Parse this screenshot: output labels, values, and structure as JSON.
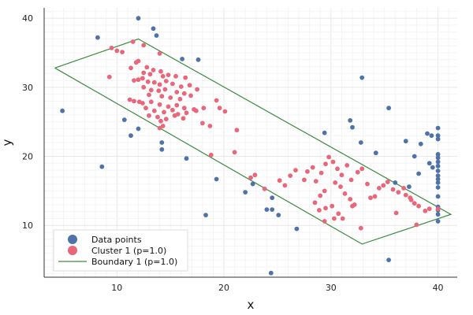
{
  "chart_data": {
    "type": "scatter",
    "title": "",
    "xlabel": "x",
    "ylabel": "y",
    "xlim": [
      3.2,
      41.8
    ],
    "ylim": [
      2.5,
      41.5
    ],
    "xticks": [
      10,
      20,
      30,
      40
    ],
    "yticks": [
      10,
      20,
      30,
      40
    ],
    "grid": true,
    "legend_position": "bottom-left",
    "series": [
      {
        "name": "Data points",
        "kind": "scatter",
        "color": "#4f73a8",
        "points": [
          [
            12.0,
            40.0
          ],
          [
            13.4,
            38.5
          ],
          [
            13.7,
            37.5
          ],
          [
            8.2,
            37.2
          ],
          [
            16.1,
            34.1
          ],
          [
            17.6,
            34.0
          ],
          [
            4.9,
            26.6
          ],
          [
            10.7,
            25.3
          ],
          [
            11.3,
            23.0
          ],
          [
            12.0,
            24.0
          ],
          [
            14.2,
            22.0
          ],
          [
            14.2,
            21.0
          ],
          [
            16.5,
            19.7
          ],
          [
            8.6,
            18.5
          ],
          [
            19.3,
            16.7
          ],
          [
            18.3,
            11.5
          ],
          [
            22.0,
            14.8
          ],
          [
            22.7,
            16.0
          ],
          [
            24.0,
            12.3
          ],
          [
            24.5,
            12.3
          ],
          [
            25.1,
            11.5
          ],
          [
            24.5,
            14.0
          ],
          [
            26.8,
            9.5
          ],
          [
            24.4,
            3.1
          ],
          [
            29.4,
            23.4
          ],
          [
            31.8,
            25.2
          ],
          [
            32.0,
            24.2
          ],
          [
            32.9,
            31.4
          ],
          [
            32.8,
            22.0
          ],
          [
            34.2,
            20.5
          ],
          [
            35.4,
            27.0
          ],
          [
            35.4,
            5.0
          ],
          [
            36.0,
            16.2
          ],
          [
            37.0,
            22.2
          ],
          [
            37.3,
            15.6
          ],
          [
            37.8,
            20.0
          ],
          [
            38.2,
            17.5
          ],
          [
            38.4,
            21.8
          ],
          [
            39.0,
            23.3
          ],
          [
            39.4,
            23.0
          ],
          [
            39.2,
            19.0
          ],
          [
            39.5,
            18.4
          ],
          [
            40.0,
            24.1
          ],
          [
            40.0,
            23.0
          ],
          [
            40.0,
            22.5
          ],
          [
            40.0,
            20.3
          ],
          [
            40.0,
            19.8
          ],
          [
            40.0,
            19.2
          ],
          [
            40.0,
            18.6
          ],
          [
            40.0,
            17.9
          ],
          [
            40.0,
            17.2
          ],
          [
            40.0,
            16.7
          ],
          [
            40.0,
            16.2
          ],
          [
            40.0,
            15.5
          ],
          [
            40.0,
            14.2
          ],
          [
            40.0,
            12.7
          ],
          [
            40.0,
            12.2
          ],
          [
            40.0,
            11.6
          ],
          [
            40.0,
            10.6
          ]
        ]
      },
      {
        "name": "Cluster 1 (p=1.0)",
        "kind": "scatter",
        "color": "#e8677a",
        "points": [
          [
            9.5,
            35.7
          ],
          [
            10.0,
            35.3
          ],
          [
            10.5,
            35.1
          ],
          [
            9.3,
            31.5
          ],
          [
            11.5,
            36.6
          ],
          [
            12.5,
            36.1
          ],
          [
            14.0,
            34.9
          ],
          [
            12.0,
            33.8
          ],
          [
            11.8,
            33.6
          ],
          [
            11.3,
            32.8
          ],
          [
            12.8,
            32.9
          ],
          [
            13.4,
            32.5
          ],
          [
            14.1,
            32.3
          ],
          [
            12.5,
            32.1
          ],
          [
            13.1,
            31.9
          ],
          [
            14.3,
            31.6
          ],
          [
            14.8,
            31.8
          ],
          [
            15.5,
            31.6
          ],
          [
            16.4,
            31.4
          ],
          [
            11.6,
            31.0
          ],
          [
            12.0,
            31.1
          ],
          [
            12.4,
            31.3
          ],
          [
            12.9,
            30.8
          ],
          [
            13.5,
            30.7
          ],
          [
            14.6,
            30.9
          ],
          [
            14.0,
            30.4
          ],
          [
            15.2,
            30.5
          ],
          [
            16.0,
            30.1
          ],
          [
            16.8,
            30.3
          ],
          [
            17.5,
            29.7
          ],
          [
            12.5,
            30.0
          ],
          [
            13.2,
            29.6
          ],
          [
            13.9,
            29.5
          ],
          [
            14.5,
            29.7
          ],
          [
            15.6,
            29.3
          ],
          [
            16.3,
            29.1
          ],
          [
            13.0,
            28.9
          ],
          [
            14.2,
            28.7
          ],
          [
            15.0,
            28.5
          ],
          [
            15.9,
            28.3
          ],
          [
            16.9,
            28.8
          ],
          [
            11.2,
            28.2
          ],
          [
            11.6,
            28.0
          ],
          [
            12.1,
            27.9
          ],
          [
            12.4,
            27.7
          ],
          [
            13.2,
            27.9
          ],
          [
            14.0,
            27.5
          ],
          [
            14.8,
            27.2
          ],
          [
            15.6,
            27.4
          ],
          [
            16.3,
            27.0
          ],
          [
            17.2,
            26.8
          ],
          [
            18.1,
            27.0
          ],
          [
            12.7,
            27.0
          ],
          [
            13.5,
            26.6
          ],
          [
            14.4,
            26.4
          ],
          [
            15.2,
            26.7
          ],
          [
            15.7,
            26.1
          ],
          [
            16.5,
            26.3
          ],
          [
            17.4,
            26.6
          ],
          [
            13.0,
            25.9
          ],
          [
            13.8,
            25.7
          ],
          [
            14.6,
            25.4
          ],
          [
            15.4,
            25.9
          ],
          [
            16.2,
            25.5
          ],
          [
            14.1,
            25.1
          ],
          [
            14.3,
            24.4
          ],
          [
            14.0,
            24.1
          ],
          [
            18.0,
            24.8
          ],
          [
            18.7,
            24.4
          ],
          [
            19.3,
            28.1
          ],
          [
            19.6,
            27.0
          ],
          [
            20.1,
            26.5
          ],
          [
            21.2,
            23.8
          ],
          [
            21.0,
            20.6
          ],
          [
            18.8,
            20.2
          ],
          [
            22.5,
            16.9
          ],
          [
            22.9,
            17.3
          ],
          [
            23.8,
            15.3
          ],
          [
            25.2,
            16.5
          ],
          [
            25.7,
            15.8
          ],
          [
            26.2,
            17.2
          ],
          [
            26.7,
            18.0
          ],
          [
            27.5,
            16.6
          ],
          [
            27.8,
            17.8
          ],
          [
            28.3,
            18.4
          ],
          [
            28.6,
            16.4
          ],
          [
            29.1,
            17.6
          ],
          [
            29.5,
            18.9
          ],
          [
            29.8,
            19.9
          ],
          [
            30.2,
            19.2
          ],
          [
            30.6,
            18.2
          ],
          [
            31.0,
            17.3
          ],
          [
            31.5,
            18.7
          ],
          [
            31.9,
            16.6
          ],
          [
            32.5,
            17.7
          ],
          [
            32.9,
            18.2
          ],
          [
            33.4,
            16.0
          ],
          [
            33.7,
            14.0
          ],
          [
            34.1,
            14.2
          ],
          [
            34.5,
            15.4
          ],
          [
            34.9,
            15.8
          ],
          [
            35.3,
            16.3
          ],
          [
            35.8,
            15.2
          ],
          [
            36.3,
            14.8
          ],
          [
            37.0,
            14.4
          ],
          [
            37.5,
            13.7
          ],
          [
            37.8,
            13.2
          ],
          [
            38.2,
            12.8
          ],
          [
            38.8,
            12.1
          ],
          [
            39.2,
            12.4
          ],
          [
            30.4,
            16.2
          ],
          [
            30.9,
            15.6
          ],
          [
            31.3,
            14.6
          ],
          [
            31.8,
            13.8
          ],
          [
            32.2,
            13.0
          ],
          [
            29.4,
            15.0
          ],
          [
            29.0,
            14.3
          ],
          [
            28.5,
            13.3
          ],
          [
            28.9,
            12.2
          ],
          [
            29.5,
            12.5
          ],
          [
            30.1,
            12.8
          ],
          [
            30.7,
            11.7
          ],
          [
            30.3,
            11.0
          ],
          [
            31.1,
            11.0
          ],
          [
            32.0,
            12.8
          ],
          [
            32.8,
            9.6
          ],
          [
            29.4,
            10.6
          ],
          [
            36.1,
            11.8
          ],
          [
            36.8,
            15.4
          ],
          [
            37.4,
            14.0
          ],
          [
            38.0,
            10.1
          ],
          [
            40.0,
            12.4
          ]
        ]
      },
      {
        "name": "Boundary 1 (p=1.0)",
        "kind": "line",
        "color": "#3a8a3e",
        "points": [
          [
            4.2,
            32.8
          ],
          [
            12.0,
            37.0
          ],
          [
            41.2,
            11.6
          ],
          [
            32.9,
            7.3
          ],
          [
            4.2,
            32.8
          ]
        ]
      }
    ]
  }
}
